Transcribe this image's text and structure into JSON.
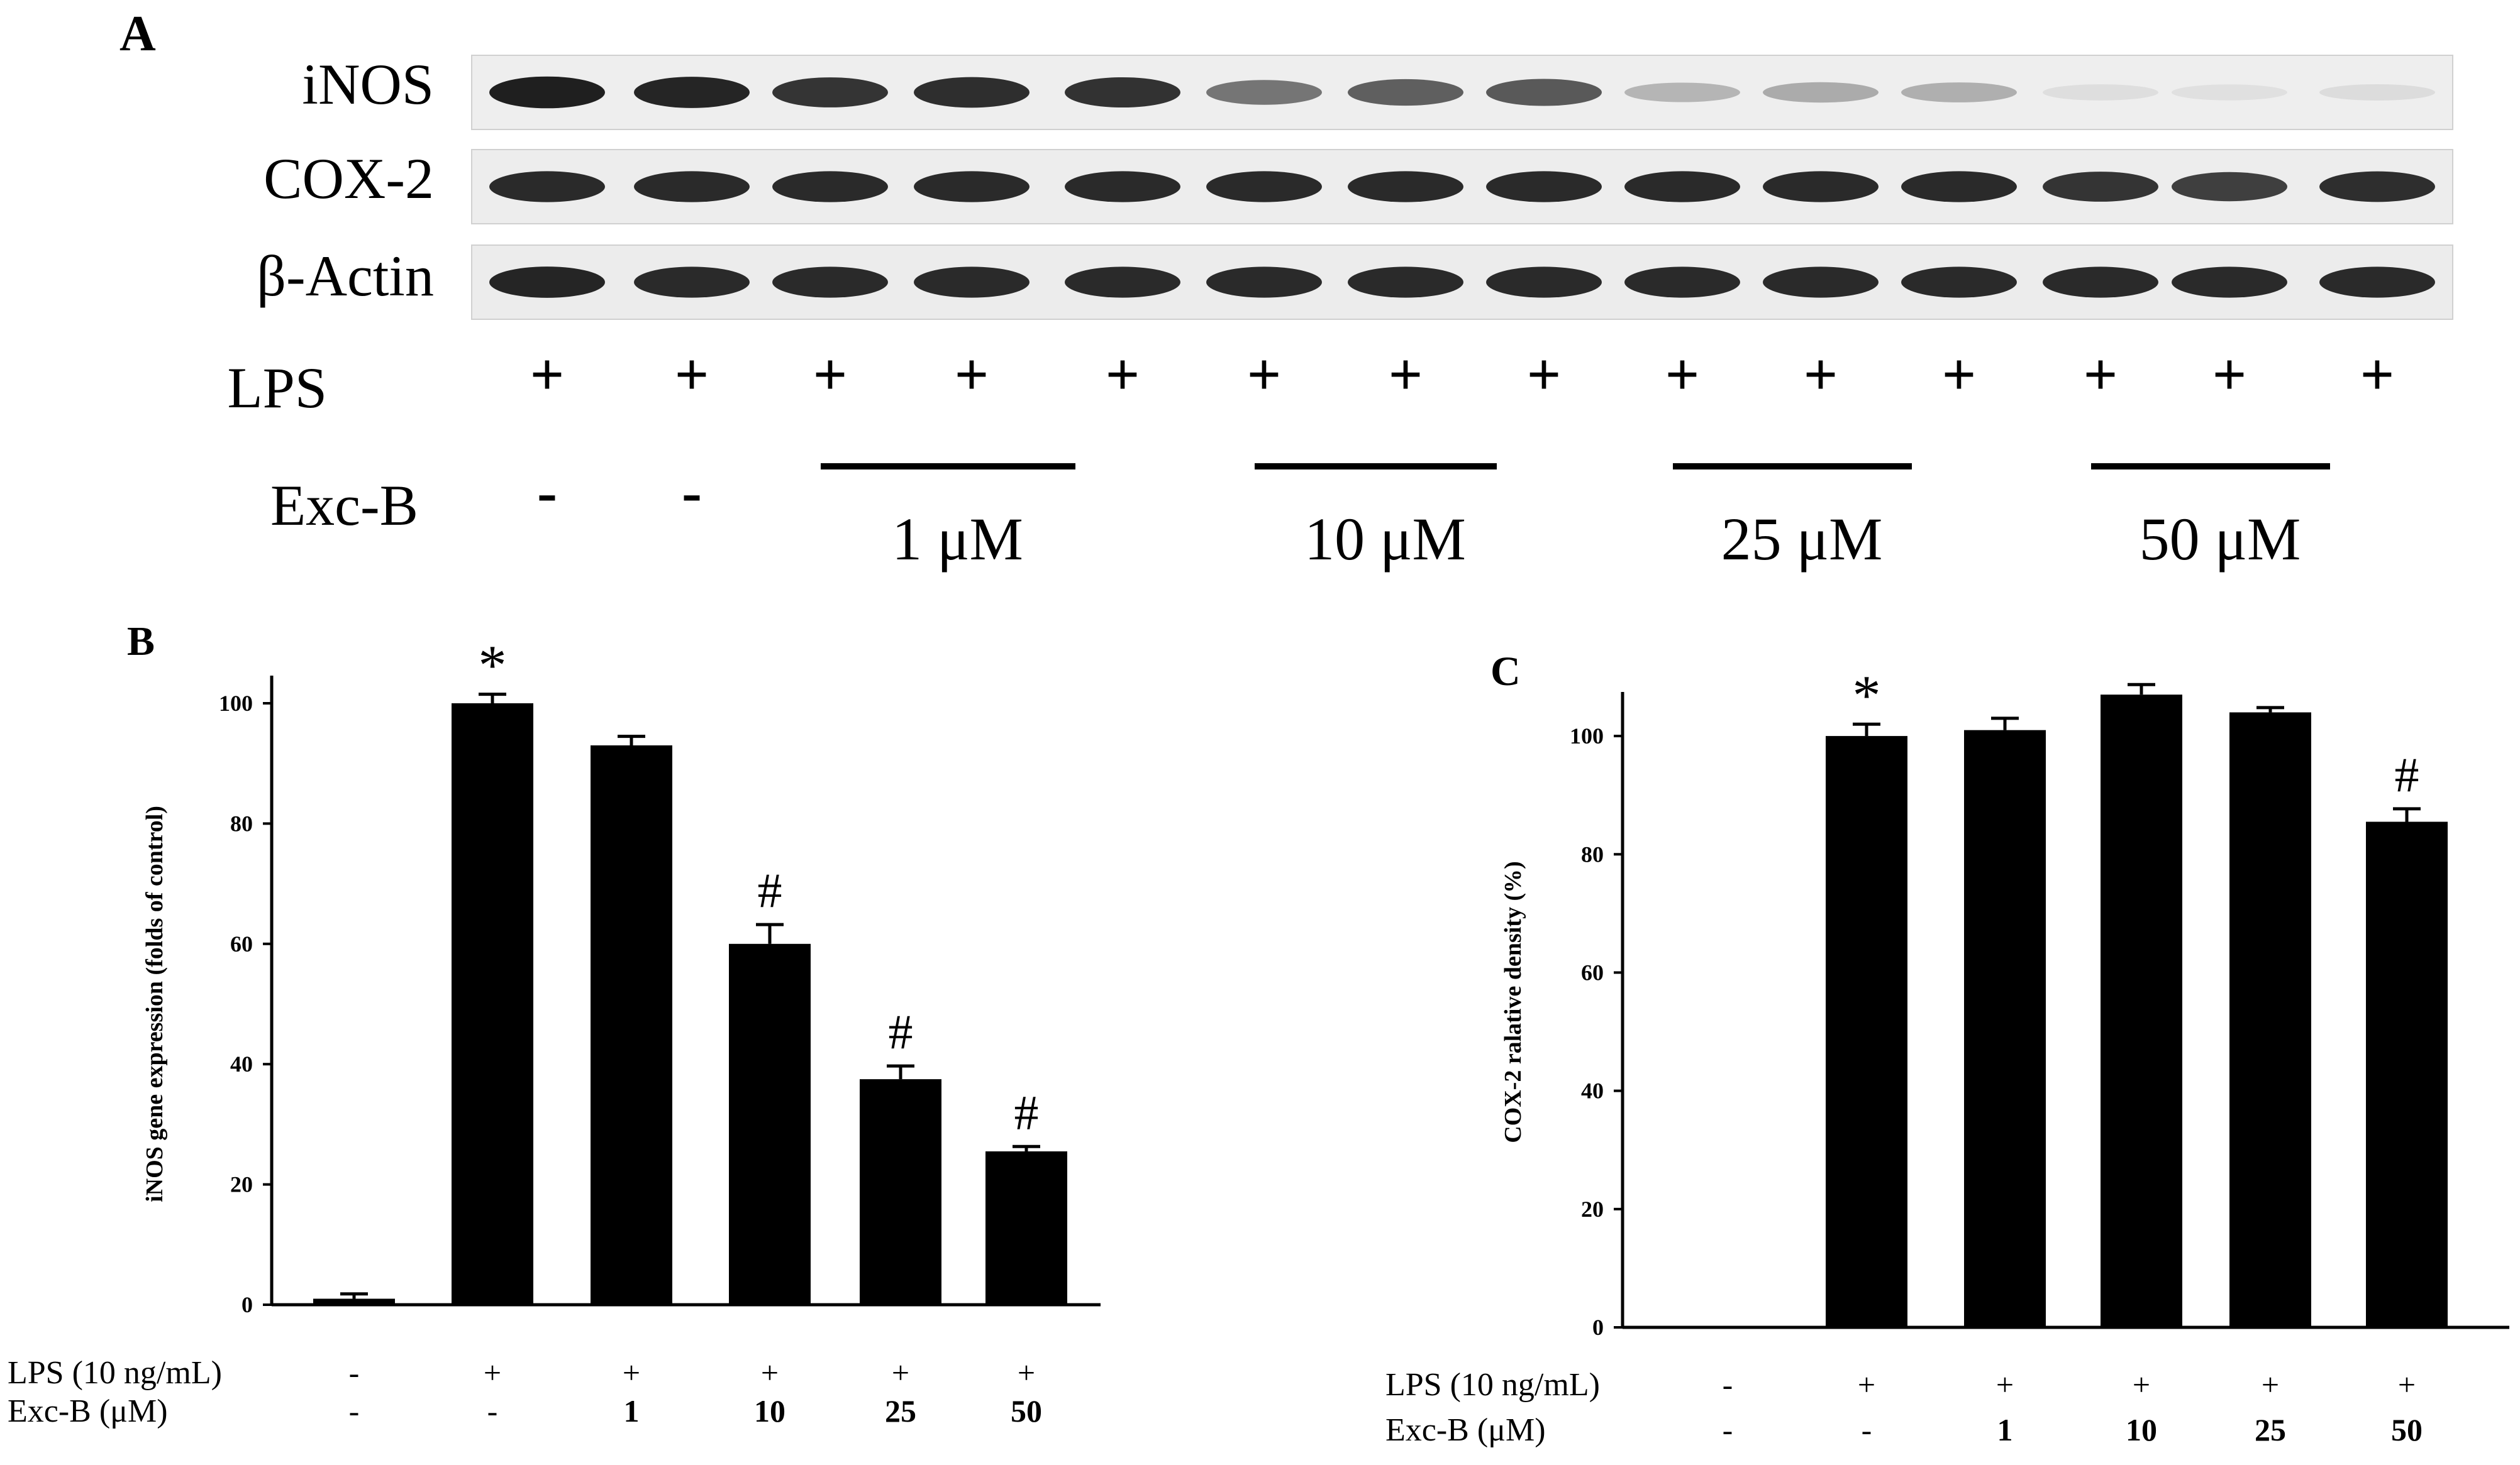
{
  "panel_a": {
    "letter": "A",
    "blot_rows": [
      {
        "label": "iNOS",
        "intensities": [
          0.95,
          0.92,
          0.85,
          0.88,
          0.86,
          0.55,
          0.65,
          0.68,
          0.25,
          0.3,
          0.28,
          0.06,
          0.05,
          0.07
        ]
      },
      {
        "label": "COX-2",
        "intensities": [
          0.9,
          0.9,
          0.9,
          0.9,
          0.9,
          0.9,
          0.9,
          0.9,
          0.9,
          0.9,
          0.9,
          0.85,
          0.8,
          0.88
        ]
      },
      {
        "label": "β-Actin",
        "intensities": [
          0.92,
          0.9,
          0.9,
          0.9,
          0.9,
          0.9,
          0.9,
          0.9,
          0.9,
          0.9,
          0.9,
          0.9,
          0.9,
          0.9
        ]
      }
    ],
    "lps_label": "LPS",
    "lps_marks": [
      "+",
      "+",
      "+",
      "+",
      "+",
      "+",
      "+",
      "+",
      "+",
      "+",
      "+",
      "+",
      "+",
      "+"
    ],
    "exc_label": "Exc-B",
    "exc_marks": [
      "-",
      "-"
    ],
    "dose_groups": [
      "1 μM",
      "10 μM",
      "25 μM",
      "50 μM"
    ]
  },
  "chart_data": [
    {
      "panel": "B",
      "type": "bar",
      "ylabel": "iNOS gene expression (folds of control)",
      "ylim": [
        0,
        100
      ],
      "yticks": [
        "0",
        "20",
        "40",
        "60",
        "80",
        "100"
      ],
      "values": [
        1,
        100,
        93,
        60,
        37.5,
        25.5
      ],
      "errors": [
        0.8,
        1.5,
        1.5,
        3.2,
        2.2,
        0.8
      ],
      "annotations": [
        "",
        "*",
        "",
        "#",
        "#",
        "#"
      ],
      "row_labels": [
        "LPS (10 ng/mL)",
        "Exc-B (μM)"
      ],
      "lps": [
        "-",
        "+",
        "+",
        "+",
        "+",
        "+"
      ],
      "exc": [
        "-",
        "-",
        "1",
        "10",
        "25",
        "50"
      ]
    },
    {
      "panel": "C",
      "type": "bar",
      "ylabel": "COX-2 ralative density (%)",
      "ylim": [
        0,
        110
      ],
      "yticks": [
        "0",
        "20",
        "40",
        "60",
        "80",
        "100"
      ],
      "values": [
        0,
        100,
        101,
        107,
        104,
        85.5
      ],
      "errors": [
        0,
        2,
        2,
        1.7,
        0.8,
        2.2
      ],
      "annotations": [
        "",
        "*",
        "",
        "",
        "",
        "#"
      ],
      "row_labels": [
        "LPS (10 ng/mL)",
        "Exc-B (μM)"
      ],
      "lps": [
        "-",
        "+",
        "+",
        "+",
        "+",
        "+"
      ],
      "exc": [
        "-",
        "-",
        "1",
        "10",
        "25",
        "50"
      ]
    }
  ]
}
